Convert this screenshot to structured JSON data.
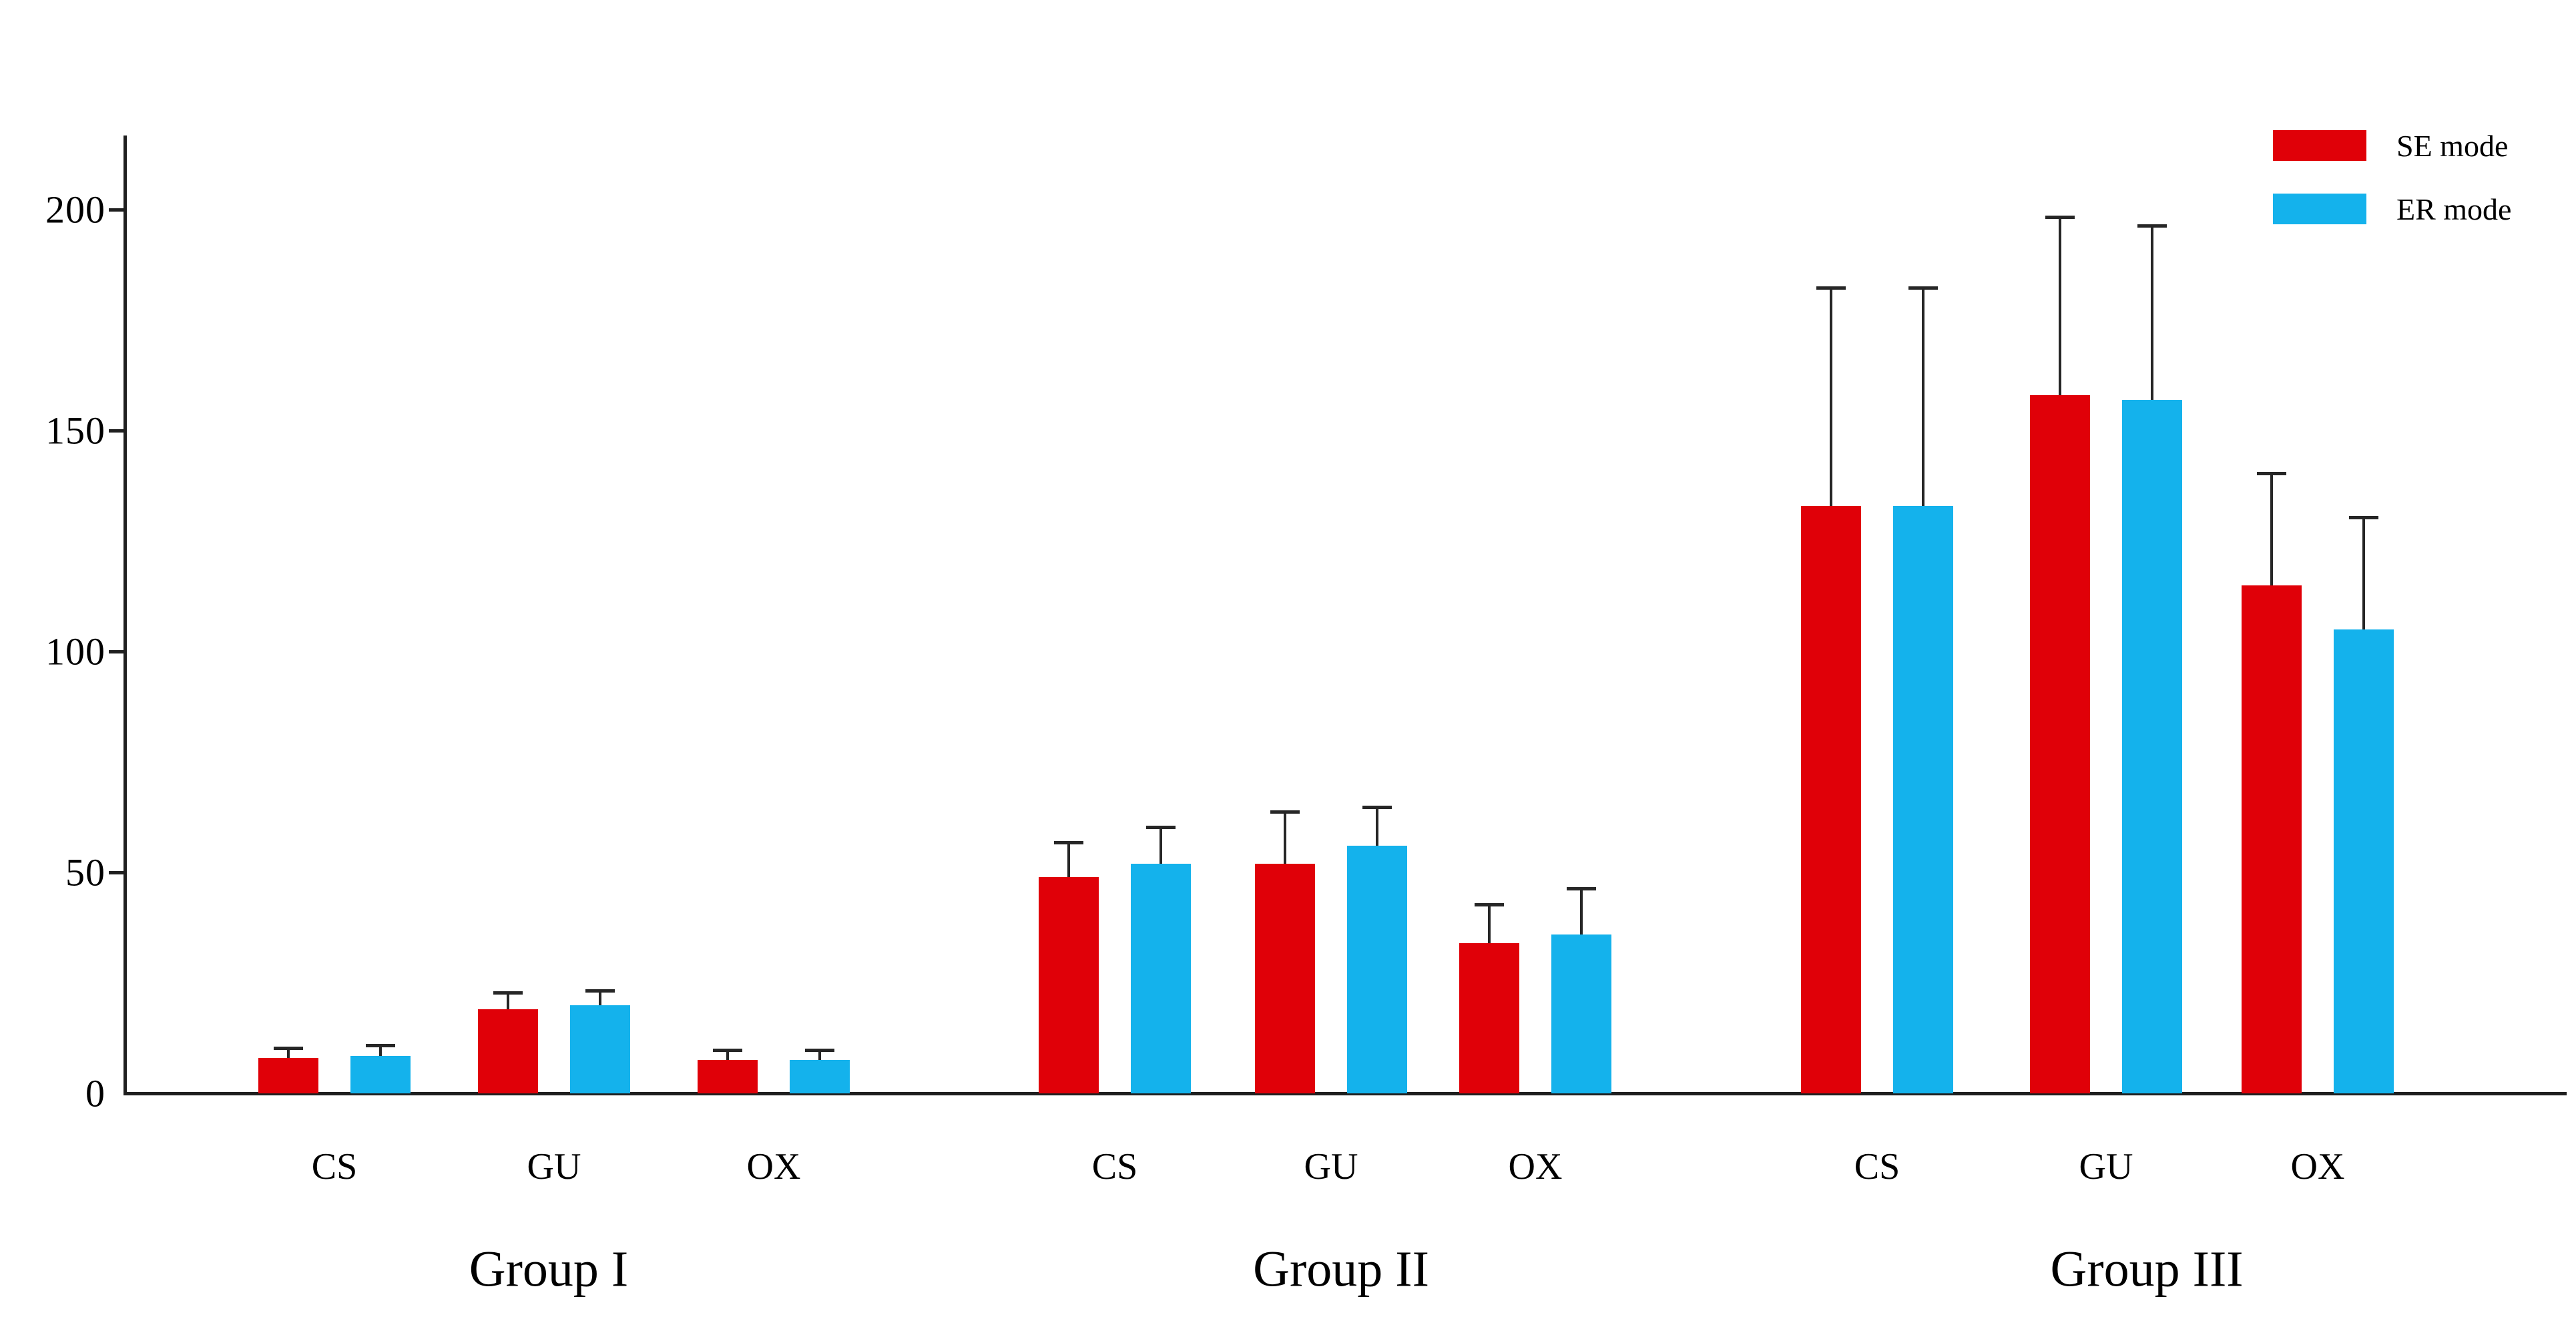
{
  "figure": {
    "background": "#ffffff",
    "axis_color": "#1f1f1f",
    "error_bar_color": "#262626",
    "text_color": "#000000"
  },
  "legend": {
    "position": "top-right",
    "entries": [
      {
        "label": "SE mode",
        "color": "#e00008"
      },
      {
        "label": "ER mode",
        "color": "#14b2ec"
      }
    ]
  },
  "chart_data": {
    "type": "bar",
    "title": "",
    "xlabel": "",
    "ylabel": "",
    "ylim": [
      0,
      215
    ],
    "yticks": [
      "0",
      "50",
      "100",
      "150",
      "200"
    ],
    "ytick_values": [
      0,
      50,
      100,
      150,
      200
    ],
    "grid": false,
    "error_bars": "upper-only",
    "legend_position": "top-right",
    "series": [
      {
        "id": "se",
        "name": "SE mode",
        "color": "#e00008"
      },
      {
        "id": "er",
        "name": "ER mode",
        "color": "#14b2ec"
      }
    ],
    "groups": [
      {
        "label": "Group I",
        "categories": [
          "CS",
          "GU",
          "OX"
        ],
        "se": {
          "values": [
            8,
            19,
            7.5
          ],
          "errors": [
            2,
            3.5,
            2
          ]
        },
        "er": {
          "values": [
            8.5,
            20,
            7.5
          ],
          "errors": [
            2,
            3,
            2
          ]
        }
      },
      {
        "label": "Group II",
        "categories": [
          "CS",
          "GU",
          "OX"
        ],
        "se": {
          "values": [
            49,
            52,
            34
          ],
          "errors": [
            7.5,
            11.5,
            8.5
          ]
        },
        "er": {
          "values": [
            52,
            56,
            36
          ],
          "errors": [
            8,
            8.5,
            10
          ]
        }
      },
      {
        "label": "Group III",
        "categories": [
          "CS",
          "GU",
          "OX"
        ],
        "se": {
          "values": [
            133,
            158,
            115
          ],
          "errors": [
            49,
            40,
            25
          ]
        },
        "er": {
          "values": [
            133,
            157,
            105
          ],
          "errors": [
            49,
            39,
            25
          ]
        }
      }
    ]
  }
}
